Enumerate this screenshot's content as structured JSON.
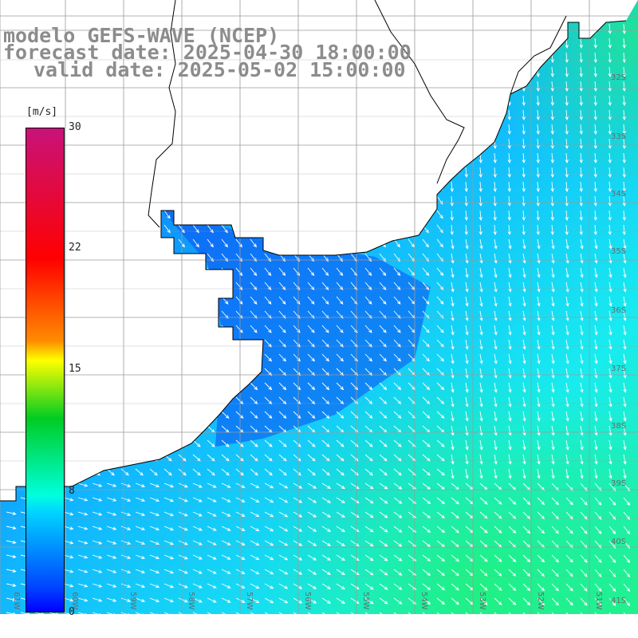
{
  "title": {
    "line1": "modelo GEFS-WAVE (NCEP)",
    "line2": "forecast date: 2025-04-30 18:00:00",
    "line3": "valid date: 2025-05-02 15:00:00"
  },
  "colorbar": {
    "unit": "[m/s]",
    "ticks": [
      {
        "value": 30,
        "label": "30"
      },
      {
        "value": 22,
        "label": "22"
      },
      {
        "value": 15,
        "label": "15"
      },
      {
        "value": 8,
        "label": "8"
      },
      {
        "value": 0,
        "label": "0"
      }
    ],
    "colors": [
      "#c8127a",
      "#ff0000",
      "#ff8c00",
      "#ffff00",
      "#00cc22",
      "#00ffdd",
      "#00d8ff",
      "#0044ff",
      "#0000ff"
    ]
  },
  "map": {
    "lat_labels": [
      "32S",
      "33S",
      "34S",
      "35S",
      "36S",
      "37S",
      "38S",
      "39S",
      "40S",
      "41S"
    ],
    "lon_labels": [
      "61W",
      "60W",
      "59W",
      "58W",
      "57W",
      "56W",
      "55W",
      "54W",
      "53W",
      "52W",
      "51W"
    ],
    "land_color": "#ffffff",
    "grid_color": "#9a9a9a",
    "arrow_color": "#ffffff"
  }
}
